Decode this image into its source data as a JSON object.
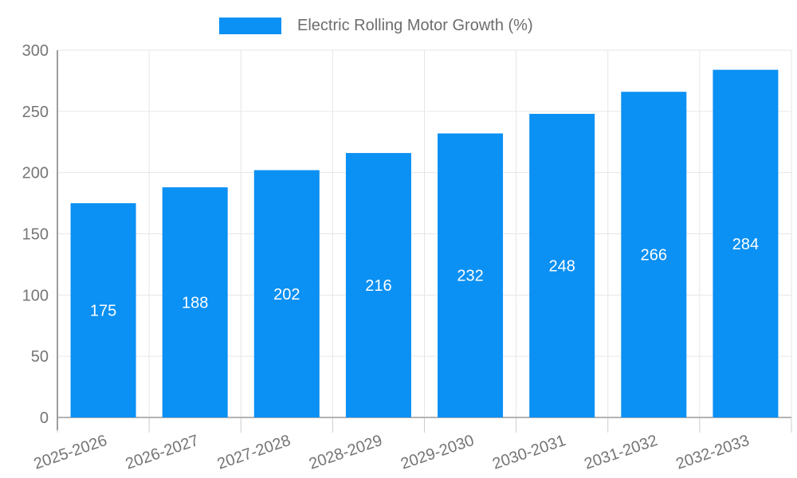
{
  "chart_data": {
    "type": "bar",
    "title": "",
    "legend": {
      "label": "Electric Rolling Motor Growth (%)",
      "position": "top"
    },
    "categories": [
      "2025-2026",
      "2026-2027",
      "2027-2028",
      "2028-2029",
      "2029-2030",
      "2030-2031",
      "2031-2032",
      "2032-2033"
    ],
    "series": [
      {
        "name": "Electric Rolling Motor Growth (%)",
        "values": [
          175,
          188,
          202,
          216,
          232,
          248,
          266,
          284
        ]
      }
    ],
    "value_labels": "inside-center",
    "xlabel": "",
    "ylabel": "",
    "ylim": [
      0,
      300
    ],
    "yticks": [
      0,
      50,
      100,
      150,
      200,
      250,
      300
    ],
    "grid": true,
    "colors": {
      "bar": "#0b90f3",
      "gridline": "#e6e6e6",
      "baseline": "#b3b3b3",
      "axis_line": "#9e9e9e",
      "tick_mark": "#cccccc",
      "axis_text": "#757575",
      "legend_text": "#6d6d6d",
      "value_label_text": "#ffffff",
      "background": "#ffffff"
    }
  }
}
